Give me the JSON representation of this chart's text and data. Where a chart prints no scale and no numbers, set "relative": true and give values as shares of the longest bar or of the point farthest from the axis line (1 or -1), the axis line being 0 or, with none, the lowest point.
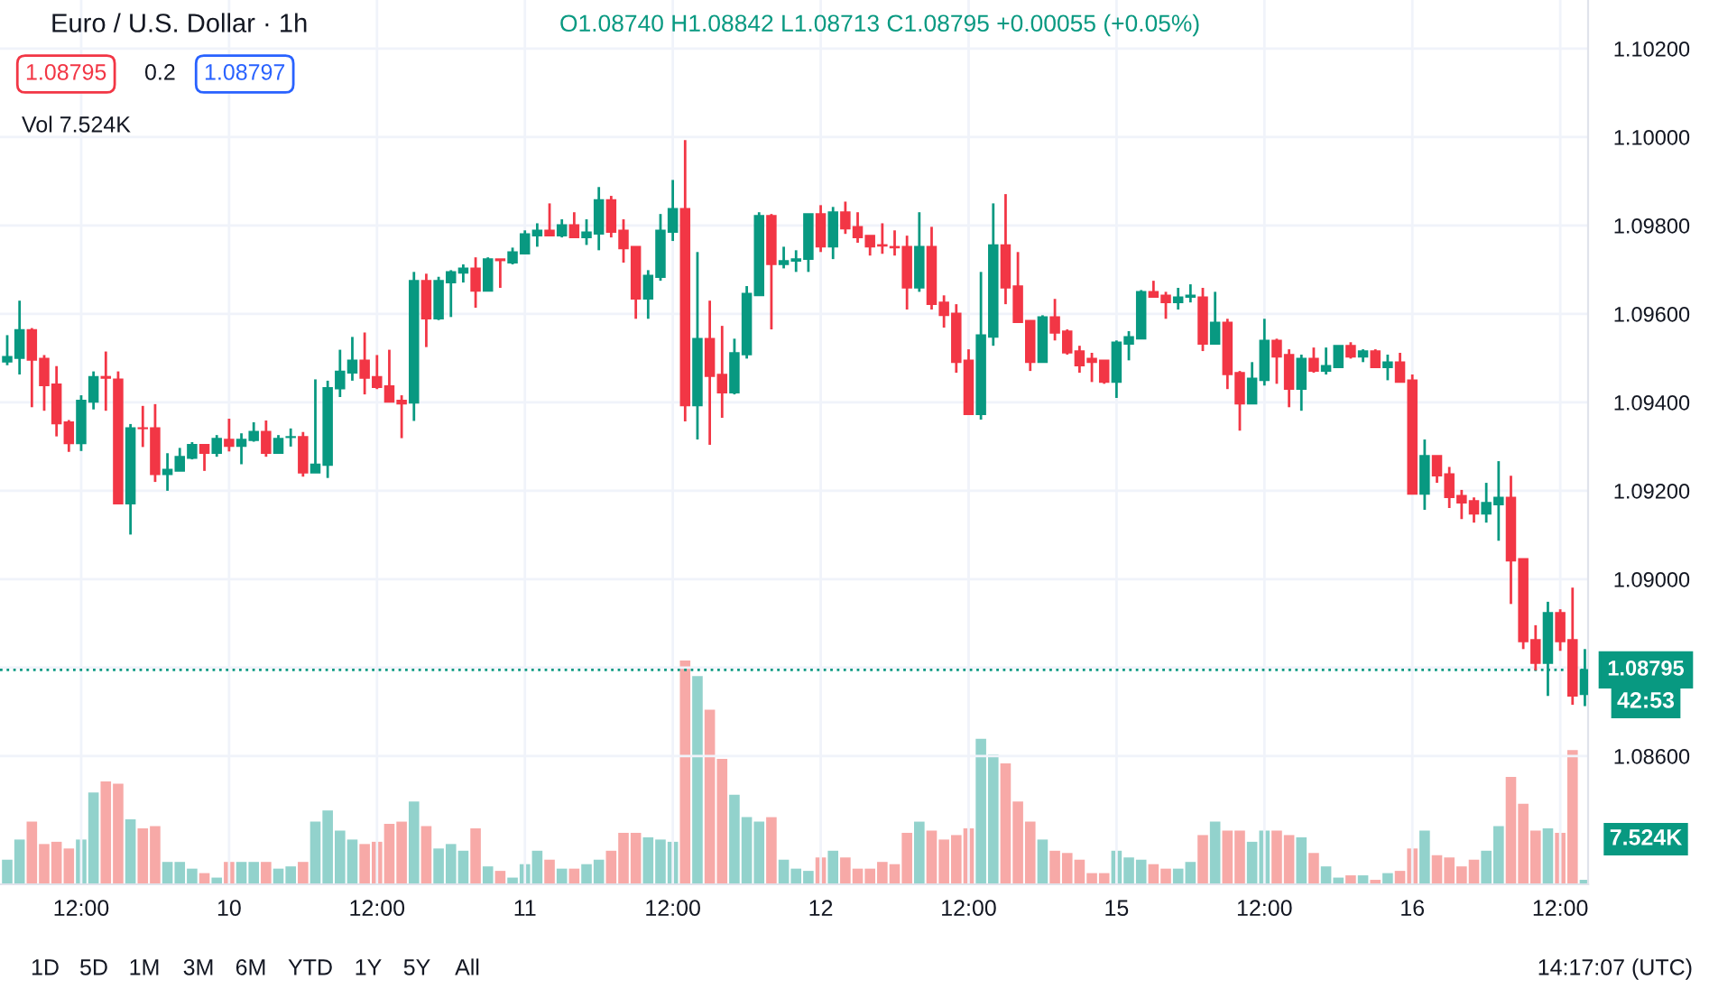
{
  "chart_data": [
    {
      "type": "candlestick",
      "title": "Euro / U.S. Dollar · 1h",
      "subtitle": "O1.08740 H1.08842 L1.08713 C1.08795 +0.00055 (+0.05%)",
      "categories": [
        null,
        null,
        null,
        null,
        null,
        null,
        "12:00",
        null,
        null,
        null,
        null,
        null,
        null,
        null,
        null,
        null,
        null,
        null,
        "10",
        null,
        null,
        null,
        null,
        null,
        null,
        null,
        null,
        null,
        null,
        null,
        "12:00",
        null,
        null,
        null,
        null,
        null,
        null,
        null,
        null,
        null,
        null,
        null,
        "11",
        null,
        null,
        null,
        null,
        null,
        null,
        null,
        null,
        null,
        null,
        null,
        "12:00",
        null,
        null,
        null,
        null,
        null,
        null,
        null,
        null,
        null,
        null,
        null,
        "12",
        null,
        null,
        null,
        null,
        null,
        null,
        null,
        null,
        null,
        null,
        null,
        "12:00",
        null,
        null,
        null,
        null,
        null,
        null,
        null,
        null,
        null,
        null,
        null,
        "15",
        null,
        null,
        null,
        null,
        null,
        null,
        null,
        null,
        null,
        null,
        null,
        "12:00",
        null,
        null,
        null,
        null,
        null,
        null,
        null,
        null,
        null,
        null,
        null,
        "16",
        null,
        null,
        null,
        null,
        null,
        null,
        null,
        null,
        null,
        null,
        null,
        "12:00",
        null,
        null
      ],
      "ohlc": [
        [
          1.09492,
          1.09552,
          1.09484,
          1.09503
        ],
        [
          1.095,
          1.0963,
          1.09463,
          1.09564
        ],
        [
          1.09564,
          1.09568,
          1.09389,
          1.09496
        ],
        [
          1.09499,
          1.09507,
          1.09381,
          1.09438
        ],
        [
          1.09441,
          1.09482,
          1.09323,
          1.09352
        ],
        [
          1.09355,
          1.0936,
          1.09288,
          1.09307
        ],
        [
          1.09307,
          1.09416,
          1.0929,
          1.09404
        ],
        [
          1.09401,
          1.0947,
          1.09384,
          1.09458
        ],
        [
          1.09458,
          1.09515,
          1.09381,
          1.09455
        ],
        [
          1.09452,
          1.0947,
          1.09171,
          1.09171
        ],
        [
          1.09171,
          1.09351,
          1.09101,
          1.09342
        ],
        [
          1.09342,
          1.09392,
          1.09299,
          1.09341
        ],
        [
          1.09342,
          1.09396,
          1.0922,
          1.09237
        ],
        [
          1.09237,
          1.09285,
          1.092,
          1.09248
        ],
        [
          1.09245,
          1.09297,
          1.09245,
          1.09277
        ],
        [
          1.09274,
          1.0931,
          1.09271,
          1.09304
        ],
        [
          1.09304,
          1.09304,
          1.09245,
          1.09285
        ],
        [
          1.09285,
          1.09326,
          1.09277,
          1.09318
        ],
        [
          1.09316,
          1.09363,
          1.09289,
          1.09301
        ],
        [
          1.09301,
          1.0933,
          1.0926,
          1.09316
        ],
        [
          1.09314,
          1.09355,
          1.09311,
          1.09334
        ],
        [
          1.09334,
          1.09359,
          1.09277,
          1.09285
        ],
        [
          1.09285,
          1.09326,
          1.09285,
          1.09318
        ],
        [
          1.09321,
          1.09341,
          1.093,
          1.09322
        ],
        [
          1.09322,
          1.09333,
          1.09232,
          1.09241
        ],
        [
          1.09241,
          1.09452,
          1.09241,
          1.0926
        ],
        [
          1.09258,
          1.09449,
          1.09229,
          1.09433
        ],
        [
          1.09431,
          1.09519,
          1.09412,
          1.0947
        ],
        [
          1.09467,
          1.09548,
          1.09449,
          1.09495
        ],
        [
          1.09495,
          1.09558,
          1.09418,
          1.09455
        ],
        [
          1.09458,
          1.09507,
          1.0943,
          1.09434
        ],
        [
          1.09437,
          1.09519,
          1.09401,
          1.09401
        ],
        [
          1.09404,
          1.09416,
          1.09319,
          1.09397
        ],
        [
          1.09399,
          1.09695,
          1.09358,
          1.09675
        ],
        [
          1.09675,
          1.09691,
          1.09525,
          1.09589
        ],
        [
          1.09589,
          1.09684,
          1.09586,
          1.09675
        ],
        [
          1.09671,
          1.09699,
          1.09593,
          1.09695
        ],
        [
          1.09693,
          1.09712,
          1.09671,
          1.09703
        ],
        [
          1.09703,
          1.09728,
          1.09614,
          1.09652
        ],
        [
          1.09652,
          1.09728,
          1.09652,
          1.09724
        ],
        [
          1.09724,
          1.09724,
          1.09659,
          1.09721
        ],
        [
          1.09716,
          1.0975,
          1.09712,
          1.0974
        ],
        [
          1.09736,
          1.09789,
          1.09736,
          1.09781
        ],
        [
          1.09777,
          1.09805,
          1.09752,
          1.09789
        ],
        [
          1.09789,
          1.0985,
          1.09777,
          1.09777
        ],
        [
          1.09777,
          1.09814,
          1.09773,
          1.09801
        ],
        [
          1.09801,
          1.0983,
          1.09773,
          1.09773
        ],
        [
          1.09773,
          1.09814,
          1.09756,
          1.09785
        ],
        [
          1.09781,
          1.09887,
          1.09744,
          1.09858
        ],
        [
          1.09858,
          1.09867,
          1.09773,
          1.09785
        ],
        [
          1.09789,
          1.09814,
          1.09716,
          1.09748
        ],
        [
          1.09752,
          1.09752,
          1.09589,
          1.09634
        ],
        [
          1.09634,
          1.09699,
          1.09589,
          1.09687
        ],
        [
          1.09683,
          1.09826,
          1.09675,
          1.09789
        ],
        [
          1.09785,
          1.09903,
          1.09765,
          1.09838
        ],
        [
          1.09838,
          1.09993,
          1.09357,
          1.09393
        ],
        [
          1.09393,
          1.0974,
          1.09316,
          1.09544
        ],
        [
          1.09544,
          1.0963,
          1.09304,
          1.09459
        ],
        [
          1.09463,
          1.09573,
          1.09365,
          1.09422
        ],
        [
          1.09422,
          1.09544,
          1.09418,
          1.09512
        ],
        [
          1.09508,
          1.09663,
          1.09499,
          1.09646
        ],
        [
          1.09642,
          1.0983,
          1.09642,
          1.09822
        ],
        [
          1.09822,
          1.09826,
          1.09565,
          1.09712
        ],
        [
          1.09712,
          1.09752,
          1.09703,
          1.0972
        ],
        [
          1.0972,
          1.09744,
          1.09695,
          1.09724
        ],
        [
          1.09724,
          1.09826,
          1.09695,
          1.09826
        ],
        [
          1.09826,
          1.09846,
          1.0974,
          1.09752
        ],
        [
          1.09752,
          1.09842,
          1.09724,
          1.0983
        ],
        [
          1.0983,
          1.09854,
          1.09781,
          1.09793
        ],
        [
          1.09797,
          1.0983,
          1.09761,
          1.09773
        ],
        [
          1.09777,
          1.09777,
          1.09732,
          1.09752
        ],
        [
          1.09756,
          1.09805,
          1.09736,
          1.09754
        ],
        [
          1.09752,
          1.09789,
          1.09732,
          1.0975
        ],
        [
          1.09752,
          1.09777,
          1.0961,
          1.09659
        ],
        [
          1.09659,
          1.0983,
          1.0965,
          1.09752
        ],
        [
          1.09752,
          1.09797,
          1.0961,
          1.09622
        ],
        [
          1.09626,
          1.09642,
          1.09569,
          1.09597
        ],
        [
          1.09601,
          1.09622,
          1.09467,
          1.09491
        ],
        [
          1.09495,
          1.0952,
          1.09373,
          1.09373
        ],
        [
          1.09373,
          1.09695,
          1.09361,
          1.09552
        ],
        [
          1.09548,
          1.0985,
          1.09528,
          1.09756
        ],
        [
          1.09756,
          1.09871,
          1.09622,
          1.09659
        ],
        [
          1.09663,
          1.0974,
          1.09581,
          1.09581
        ],
        [
          1.09585,
          1.09585,
          1.09471,
          1.09491
        ],
        [
          1.09491,
          1.09597,
          1.09491,
          1.09593
        ],
        [
          1.09593,
          1.09634,
          1.0954,
          1.09557
        ],
        [
          1.09561,
          1.09565,
          1.09508,
          1.09512
        ],
        [
          1.09516,
          1.09528,
          1.09467,
          1.09483
        ],
        [
          1.09499,
          1.09512,
          1.09446,
          1.09491
        ],
        [
          1.09495,
          1.09495,
          1.09442,
          1.09446
        ],
        [
          1.09446,
          1.0954,
          1.0941,
          1.09536
        ],
        [
          1.09532,
          1.09561,
          1.09495,
          1.09548
        ],
        [
          1.09544,
          1.09654,
          1.09544,
          1.0965
        ],
        [
          1.0965,
          1.09675,
          1.09638,
          1.09638
        ],
        [
          1.09642,
          1.0965,
          1.09589,
          1.09626
        ],
        [
          1.09626,
          1.09659,
          1.0961,
          1.09638
        ],
        [
          1.09638,
          1.09667,
          1.09626,
          1.09642
        ],
        [
          1.09638,
          1.09659,
          1.09516,
          1.09532
        ],
        [
          1.09532,
          1.0965,
          1.09532,
          1.09581
        ],
        [
          1.09581,
          1.09589,
          1.0943,
          1.09463
        ],
        [
          1.09467,
          1.09471,
          1.09336,
          1.09397
        ],
        [
          1.09397,
          1.09491,
          1.09397,
          1.09454
        ],
        [
          1.0945,
          1.09589,
          1.09438,
          1.0954
        ],
        [
          1.0954,
          1.09544,
          1.09442,
          1.09503
        ],
        [
          1.09508,
          1.0952,
          1.09389,
          1.0943
        ],
        [
          1.0943,
          1.09508,
          1.09381,
          1.09499
        ],
        [
          1.09499,
          1.09524,
          1.09467,
          1.09471
        ],
        [
          1.09471,
          1.09524,
          1.09463,
          1.09483
        ],
        [
          1.09479,
          1.09528,
          1.09479,
          1.09528
        ],
        [
          1.09528,
          1.09536,
          1.09499,
          1.09503
        ],
        [
          1.09503,
          1.0952,
          1.09491,
          1.09516
        ],
        [
          1.09516,
          1.0952,
          1.09479,
          1.09479
        ],
        [
          1.09479,
          1.09508,
          1.0945,
          1.09491
        ],
        [
          1.09491,
          1.09512,
          1.09446,
          1.09446
        ],
        [
          1.0945,
          1.09463,
          1.09193,
          1.09193
        ],
        [
          1.09193,
          1.09316,
          1.09157,
          1.09279
        ],
        [
          1.09279,
          1.09279,
          1.09218,
          1.09234
        ],
        [
          1.09238,
          1.09254,
          1.09161,
          1.09185
        ],
        [
          1.09189,
          1.09202,
          1.09136,
          1.09173
        ],
        [
          1.09177,
          1.09185,
          1.09128,
          1.09148
        ],
        [
          1.09148,
          1.09218,
          1.09128,
          1.09173
        ],
        [
          1.09169,
          1.09267,
          1.09087,
          1.09185
        ],
        [
          1.09185,
          1.09234,
          1.08944,
          1.09042
        ],
        [
          1.09046,
          1.09046,
          1.08842,
          1.08859
        ],
        [
          1.08863,
          1.08896,
          1.08794,
          1.0881
        ],
        [
          1.0881,
          1.08949,
          1.08736,
          1.08924
        ],
        [
          1.08924,
          1.08932,
          1.08838,
          1.08859
        ],
        [
          1.08863,
          1.08981,
          1.08716,
          1.08736
        ],
        [
          1.0874,
          1.08842,
          1.08713,
          1.08795
        ]
      ],
      "colors": [
        "#089981",
        "#089981",
        "#f23645",
        "#f23645",
        "#f23645",
        "#f23645",
        "#089981",
        "#089981",
        "#f23645",
        "#f23645",
        "#089981",
        "#f23645",
        "#f23645",
        "#089981",
        "#089981",
        "#089981",
        "#f23645",
        "#089981",
        "#f23645",
        "#089981",
        "#089981",
        "#f23645",
        "#089981",
        "#089981",
        "#f23645",
        "#089981",
        "#089981",
        "#089981",
        "#089981",
        "#f23645",
        "#f23645",
        "#f23645",
        "#f23645",
        "#089981",
        "#f23645",
        "#089981",
        "#089981",
        "#089981",
        "#f23645",
        "#089981",
        "#f23645",
        "#089981",
        "#089981",
        "#089981",
        "#f23645",
        "#089981",
        "#f23645",
        "#089981",
        "#089981",
        "#f23645",
        "#f23645",
        "#f23645",
        "#089981",
        "#089981",
        "#089981",
        "#f23645",
        "#089981",
        "#f23645",
        "#f23645",
        "#089981",
        "#089981",
        "#089981",
        "#f23645",
        "#089981",
        "#089981",
        "#089981",
        "#f23645",
        "#089981",
        "#f23645",
        "#f23645",
        "#f23645",
        "#f23645",
        "#f23645",
        "#f23645",
        "#089981",
        "#f23645",
        "#f23645",
        "#f23645",
        "#f23645",
        "#089981",
        "#089981",
        "#f23645",
        "#f23645",
        "#f23645",
        "#089981",
        "#f23645",
        "#f23645",
        "#f23645",
        "#f23645",
        "#f23645",
        "#089981",
        "#089981",
        "#089981",
        "#f23645",
        "#f23645",
        "#089981",
        "#089981",
        "#f23645",
        "#089981",
        "#f23645",
        "#f23645",
        "#089981",
        "#089981",
        "#f23645",
        "#f23645",
        "#089981",
        "#f23645",
        "#089981",
        "#089981",
        "#f23645",
        "#089981",
        "#f23645",
        "#089981",
        "#f23645",
        "#f23645",
        "#089981",
        "#f23645",
        "#f23645",
        "#f23645",
        "#f23645",
        "#089981",
        "#089981",
        "#f23645",
        "#f23645",
        "#f23645",
        "#089981",
        "#f23645",
        "#f23645",
        "#089981"
      ],
      "ylim": [
        1.0831,
        1.1031
      ],
      "yticks": [
        {
          "value": 1.086,
          "label": "1.08600"
        },
        {
          "value": 1.088,
          "label": null
        },
        {
          "value": 1.09,
          "label": "1.09000"
        },
        {
          "value": 1.092,
          "label": "1.09200"
        },
        {
          "value": 1.094,
          "label": "1.09400"
        },
        {
          "value": 1.096,
          "label": "1.09600"
        },
        {
          "value": 1.098,
          "label": "1.09800"
        },
        {
          "value": 1.1,
          "label": "1.10000"
        },
        {
          "value": 1.102,
          "label": "1.10200"
        }
      ],
      "grid": true,
      "ref_lines": [
        {
          "axis": "y",
          "value": 1.08795,
          "label": "1.08795",
          "color": "#089981",
          "line_style": "dotted"
        }
      ],
      "annotations": [
        "1.08795",
        "0.2",
        "1.08797",
        "42:53",
        "1D",
        "5D",
        "1M",
        "3M",
        "6M",
        "YTD",
        "1Y",
        "5Y",
        "All",
        "14:17:07 (UTC)"
      ]
    },
    {
      "type": "bar",
      "relative": true,
      "categories": [
        null,
        null,
        null,
        null,
        null,
        null,
        null,
        null,
        null,
        null,
        null,
        null,
        null,
        null,
        null,
        null,
        null,
        null,
        null,
        null,
        null,
        null,
        null,
        null,
        null,
        null,
        null,
        null,
        null,
        null,
        null,
        null,
        null,
        null,
        null,
        null,
        null,
        null,
        null,
        null,
        null,
        null,
        null,
        null,
        null,
        null,
        null,
        null,
        null,
        null,
        null,
        null,
        null,
        null,
        null,
        null,
        null,
        null,
        null,
        null,
        null,
        null,
        null,
        null,
        null,
        null,
        null,
        null,
        null,
        null,
        null,
        null,
        null,
        null,
        null,
        null,
        null,
        null,
        null,
        null,
        null,
        null,
        null,
        null,
        null,
        null,
        null,
        null,
        null,
        null,
        null,
        null,
        null,
        null,
        null,
        null,
        null,
        null,
        null,
        null,
        null,
        null,
        null,
        null,
        null,
        null,
        null,
        null,
        null,
        null,
        null,
        null,
        null,
        null,
        null,
        null,
        null,
        null,
        null,
        null,
        null,
        null,
        null,
        null,
        null,
        null,
        null,
        null,
        null
      ],
      "values": [
        0.11,
        0.2,
        0.28,
        0.18,
        0.19,
        0.16,
        0.2,
        0.41,
        0.46,
        0.45,
        0.29,
        0.25,
        0.26,
        0.1,
        0.1,
        0.07,
        0.05,
        0.03,
        0.1,
        0.1,
        0.1,
        0.1,
        0.07,
        0.08,
        0.1,
        0.28,
        0.33,
        0.24,
        0.2,
        0.18,
        0.19,
        0.27,
        0.28,
        0.37,
        0.26,
        0.16,
        0.18,
        0.15,
        0.25,
        0.08,
        0.06,
        0.03,
        0.09,
        0.15,
        0.11,
        0.07,
        0.07,
        0.09,
        0.11,
        0.15,
        0.23,
        0.23,
        0.21,
        0.2,
        0.19,
        1,
        0.93,
        0.78,
        0.56,
        0.4,
        0.3,
        0.28,
        0.3,
        0.11,
        0.07,
        0.06,
        0.12,
        0.15,
        0.12,
        0.07,
        0.07,
        0.1,
        0.09,
        0.23,
        0.28,
        0.24,
        0.2,
        0.22,
        0.25,
        0.65,
        0.58,
        0.54,
        0.37,
        0.28,
        0.2,
        0.15,
        0.14,
        0.11,
        0.05,
        0.05,
        0.15,
        0.12,
        0.11,
        0.09,
        0.07,
        0.07,
        0.1,
        0.22,
        0.28,
        0.24,
        0.24,
        0.19,
        0.24,
        0.24,
        0.22,
        0.21,
        0.14,
        0.08,
        0.03,
        0.04,
        0.04,
        0.02,
        0.05,
        0.06,
        0.16,
        0.24,
        0.13,
        0.12,
        0.08,
        0.11,
        0.15,
        0.26,
        0.48,
        0.36,
        0.24,
        0.25,
        0.23,
        0.6,
        0.02
      ],
      "colors": [
        "#92d2cc",
        "#92d2cc",
        "#f7a9a7",
        "#f7a9a7",
        "#f7a9a7",
        "#f7a9a7",
        "#92d2cc",
        "#92d2cc",
        "#f7a9a7",
        "#f7a9a7",
        "#92d2cc",
        "#f7a9a7",
        "#f7a9a7",
        "#92d2cc",
        "#92d2cc",
        "#92d2cc",
        "#f7a9a7",
        "#92d2cc",
        "#f7a9a7",
        "#92d2cc",
        "#92d2cc",
        "#f7a9a7",
        "#92d2cc",
        "#92d2cc",
        "#f7a9a7",
        "#92d2cc",
        "#92d2cc",
        "#92d2cc",
        "#92d2cc",
        "#f7a9a7",
        "#f7a9a7",
        "#f7a9a7",
        "#f7a9a7",
        "#92d2cc",
        "#f7a9a7",
        "#92d2cc",
        "#92d2cc",
        "#92d2cc",
        "#f7a9a7",
        "#92d2cc",
        "#f7a9a7",
        "#92d2cc",
        "#92d2cc",
        "#92d2cc",
        "#f7a9a7",
        "#92d2cc",
        "#f7a9a7",
        "#92d2cc",
        "#92d2cc",
        "#f7a9a7",
        "#f7a9a7",
        "#f7a9a7",
        "#92d2cc",
        "#92d2cc",
        "#92d2cc",
        "#f7a9a7",
        "#92d2cc",
        "#f7a9a7",
        "#f7a9a7",
        "#92d2cc",
        "#92d2cc",
        "#92d2cc",
        "#f7a9a7",
        "#92d2cc",
        "#92d2cc",
        "#92d2cc",
        "#f7a9a7",
        "#92d2cc",
        "#f7a9a7",
        "#f7a9a7",
        "#f7a9a7",
        "#f7a9a7",
        "#f7a9a7",
        "#f7a9a7",
        "#92d2cc",
        "#f7a9a7",
        "#f7a9a7",
        "#f7a9a7",
        "#f7a9a7",
        "#92d2cc",
        "#92d2cc",
        "#f7a9a7",
        "#f7a9a7",
        "#f7a9a7",
        "#92d2cc",
        "#f7a9a7",
        "#f7a9a7",
        "#f7a9a7",
        "#f7a9a7",
        "#f7a9a7",
        "#92d2cc",
        "#92d2cc",
        "#92d2cc",
        "#f7a9a7",
        "#f7a9a7",
        "#92d2cc",
        "#92d2cc",
        "#f7a9a7",
        "#92d2cc",
        "#f7a9a7",
        "#f7a9a7",
        "#92d2cc",
        "#92d2cc",
        "#f7a9a7",
        "#f7a9a7",
        "#92d2cc",
        "#f7a9a7",
        "#92d2cc",
        "#92d2cc",
        "#f7a9a7",
        "#92d2cc",
        "#f7a9a7",
        "#92d2cc",
        "#f7a9a7",
        "#f7a9a7",
        "#92d2cc",
        "#f7a9a7",
        "#f7a9a7",
        "#f7a9a7",
        "#f7a9a7",
        "#92d2cc",
        "#92d2cc",
        "#f7a9a7",
        "#f7a9a7",
        "#f7a9a7",
        "#92d2cc",
        "#f7a9a7",
        "#f7a9a7",
        "#92d2cc"
      ],
      "annotations": [
        "Vol 7.524K",
        "7.524K"
      ]
    }
  ]
}
